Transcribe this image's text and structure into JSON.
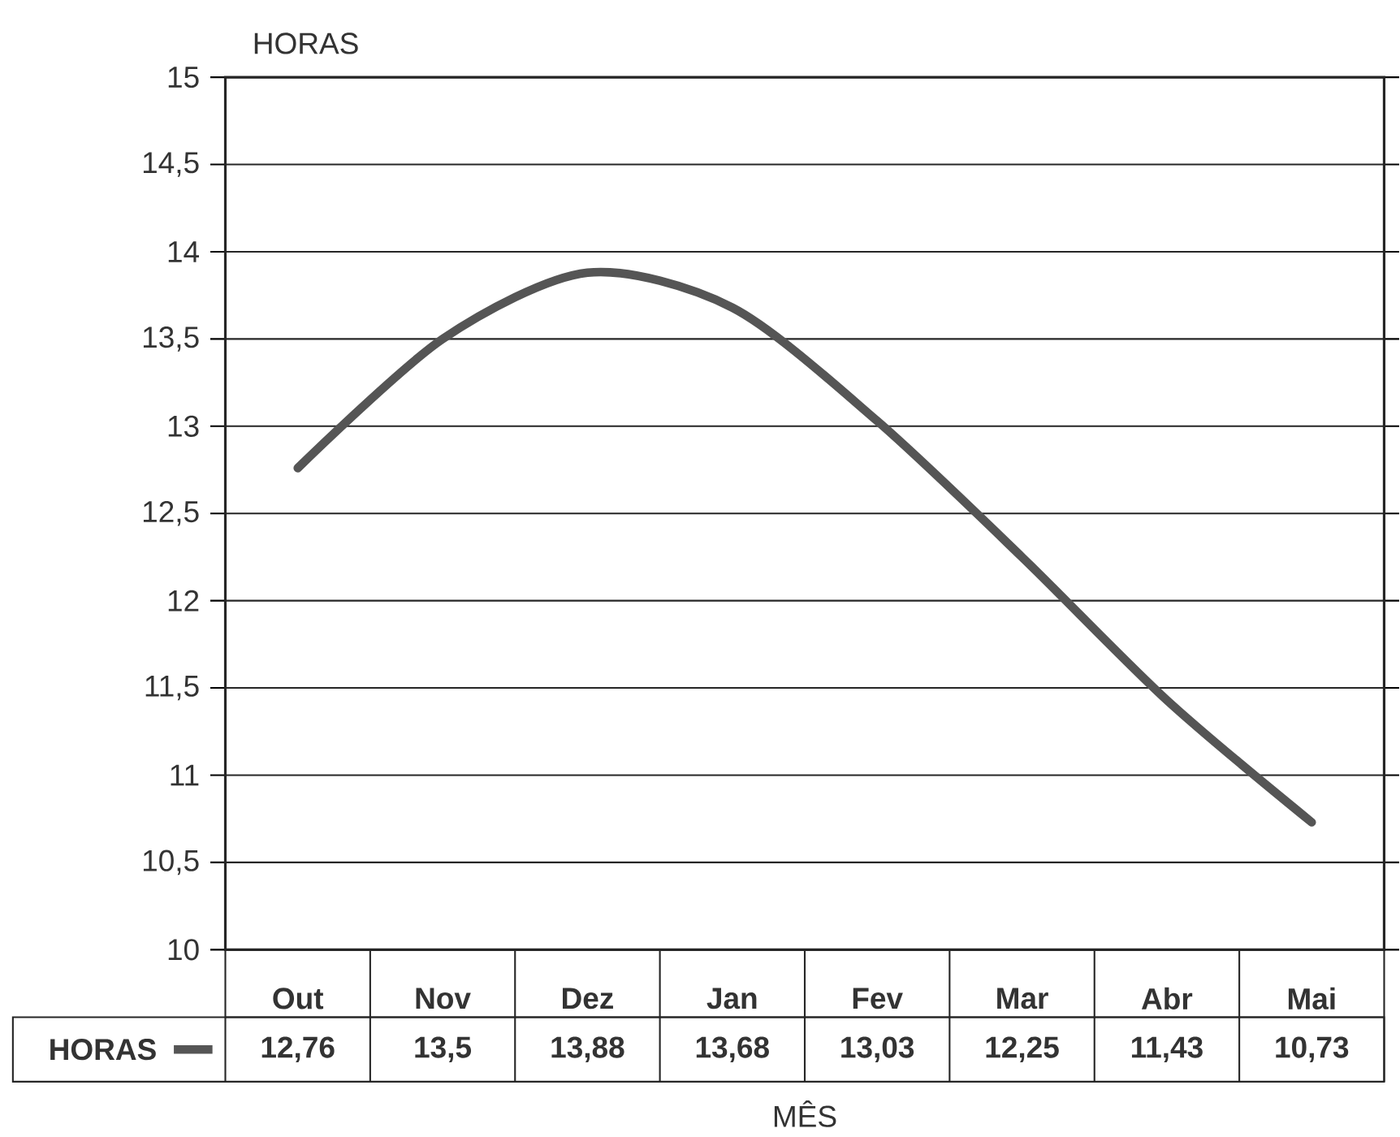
{
  "chart_data": {
    "type": "line",
    "xlabel": "MÊS",
    "ylabel": "HORAS",
    "categories": [
      "Out",
      "Nov",
      "Dez",
      "Jan",
      "Fev",
      "Mar",
      "Abr",
      "Mai"
    ],
    "series": [
      {
        "name": "HORAS",
        "color": "#555555",
        "values": [
          12.76,
          13.5,
          13.88,
          13.68,
          13.03,
          12.25,
          11.43,
          10.73
        ],
        "value_labels": [
          "12,76",
          "13,5",
          "13,88",
          "13,68",
          "13,03",
          "12,25",
          "11,43",
          "10,73"
        ]
      }
    ],
    "ylim": [
      10,
      15
    ],
    "yticks": [
      10,
      {
        "value": 10.5,
        "label": "10,5"
      },
      11,
      {
        "value": 11.5,
        "label": "11,5"
      },
      12,
      {
        "value": 12.5,
        "label": "12,5"
      },
      13,
      {
        "value": 13.5,
        "label": "13,5"
      },
      14,
      {
        "value": 14.5,
        "label": "14,5"
      },
      15
    ],
    "grid": "y",
    "legend": "bottom",
    "line_style": "solid"
  }
}
